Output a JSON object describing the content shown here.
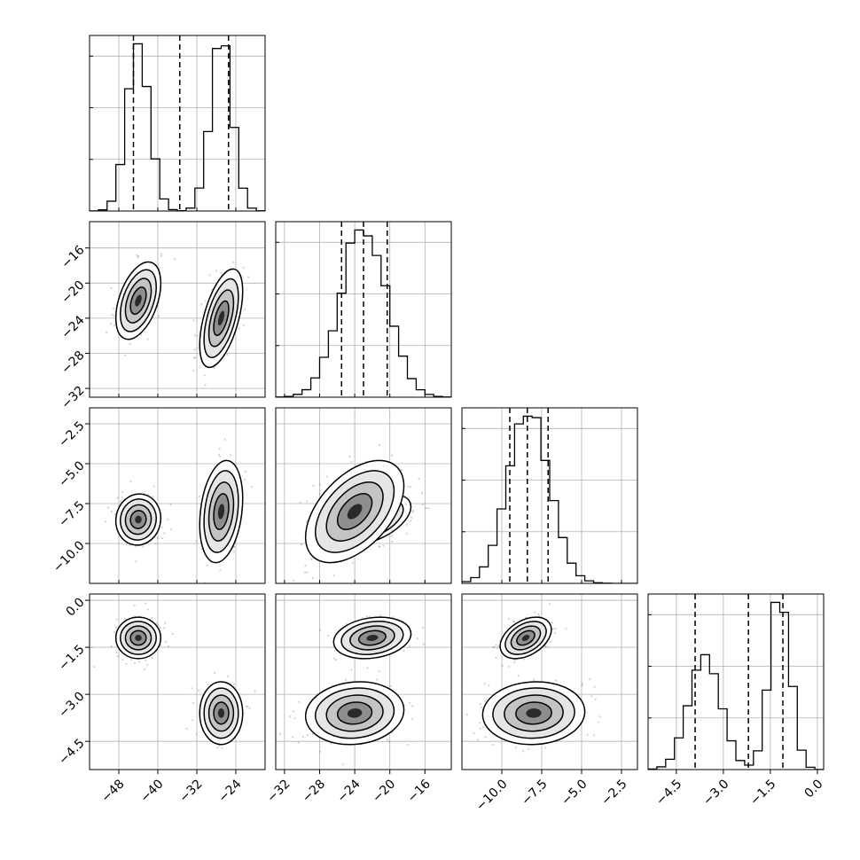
{
  "chart_data": {
    "type": "corner",
    "title": "",
    "parameters": [
      {
        "name": "",
        "range": [
          -54,
          -18
        ],
        "ticks": [
          -48,
          -40,
          -32,
          -24
        ],
        "tick_labels": [
          "−48",
          "−40",
          "−32",
          "−24"
        ],
        "quantiles": [
          -45.0,
          -35.5,
          -25.5
        ],
        "modes": [
          {
            "mean": -44.0,
            "sd": 2.3,
            "weight": 0.5
          },
          {
            "mean": -27.0,
            "sd": 2.2,
            "weight": 0.5
          }
        ]
      },
      {
        "name": "",
        "range": [
          -33,
          -13
        ],
        "ticks": [
          -32,
          -28,
          -24,
          -20,
          -16
        ],
        "tick_labels": [
          "−32",
          "−28",
          "−24",
          "−20",
          "−16"
        ],
        "quantiles": [
          -25.5,
          -23.0,
          -20.3
        ],
        "modes": [
          {
            "mean": -23.0,
            "sd": 2.6,
            "weight": 1.0
          }
        ]
      },
      {
        "name": "",
        "range": [
          -12.5,
          -1.5
        ],
        "ticks": [
          -10.0,
          -7.5,
          -5.0,
          -2.5
        ],
        "tick_labels": [
          "−10.0",
          "−7.5",
          "−5.0",
          "−2.5"
        ],
        "quantiles": [
          -9.5,
          -8.4,
          -7.1
        ],
        "modes": [
          {
            "mean": -8.3,
            "sd": 1.3,
            "weight": 1.0
          }
        ]
      },
      {
        "name": "",
        "range": [
          -5.4,
          0.2
        ],
        "ticks": [
          -4.5,
          -3.0,
          -1.5,
          0.0
        ],
        "tick_labels": [
          "−4.5",
          "−3.0",
          "−1.5",
          "0.0"
        ],
        "quantiles": [
          -3.9,
          -2.2,
          -1.1
        ],
        "modes": [
          {
            "mean": -3.6,
            "sd": 0.5,
            "weight": 0.5
          },
          {
            "mean": -1.2,
            "sd": 0.33,
            "weight": 0.5
          }
        ]
      }
    ],
    "clusters": [
      {
        "means": [
          -44.0,
          -22.0,
          -8.5,
          -1.2
        ],
        "sd": [
          2.3,
          2.2,
          0.8,
          0.33
        ],
        "weight": 0.5
      },
      {
        "means": [
          -27.0,
          -24.0,
          -8.0,
          -3.6
        ],
        "sd": [
          2.2,
          2.8,
          1.6,
          0.5
        ],
        "weight": 0.5
      }
    ],
    "correlations": {
      "0-1": [
        0.45,
        0.55
      ],
      "0-2": [
        0.05,
        0.25
      ],
      "1-2": [
        0.5,
        0.5
      ],
      "0-3": [
        0.0,
        0.0
      ],
      "1-3": [
        0.2,
        0.1
      ],
      "2-3": [
        0.4,
        0.05
      ]
    },
    "histogram_ytick_count": 3,
    "grid": true,
    "legend": "none",
    "density_contours": true
  }
}
